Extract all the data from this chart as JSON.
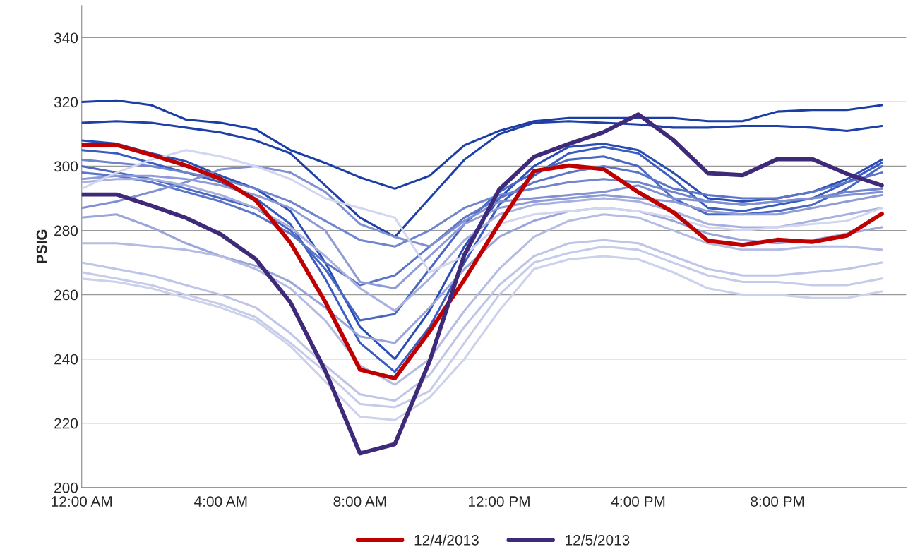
{
  "chart_data": {
    "type": "line",
    "ylabel": "PSIG",
    "x": [
      0,
      1,
      2,
      3,
      4,
      5,
      6,
      7,
      8,
      9,
      10,
      11,
      12,
      13,
      14,
      15,
      16,
      17,
      18,
      19,
      20,
      21,
      22,
      23
    ],
    "xlim": [
      0,
      23.7
    ],
    "xticks": [
      {
        "value": 0,
        "label": "12:00 AM"
      },
      {
        "value": 4,
        "label": "4:00 AM"
      },
      {
        "value": 8,
        "label": "8:00 AM"
      },
      {
        "value": 12,
        "label": "12:00 PM"
      },
      {
        "value": 16,
        "label": "4:00 PM"
      },
      {
        "value": 20,
        "label": "8:00 PM"
      }
    ],
    "ylim": [
      200,
      350
    ],
    "yticks": [
      200,
      220,
      240,
      260,
      280,
      300,
      320,
      340
    ],
    "grid": "y",
    "legend": "bottom",
    "marker": "none",
    "line_style": "solid",
    "series": [
      {
        "color": "#1a3ea6",
        "values": [
          320,
          320.5,
          319,
          314.5,
          313.5,
          311.5,
          305,
          301,
          296.5,
          293,
          297,
          306.5,
          311,
          314,
          315,
          315,
          315,
          315,
          314,
          314,
          317,
          317.5,
          317.5,
          319
        ]
      },
      {
        "color": "#1e40a8",
        "values": [
          313.5,
          314,
          313.5,
          312,
          310.5,
          308,
          304,
          294,
          284,
          278,
          290,
          302,
          310,
          313.5,
          314,
          313.5,
          313,
          312,
          312,
          312.5,
          312.5,
          312,
          311,
          312.5
        ]
      },
      {
        "color": "#2a4db5",
        "values": [
          308,
          307,
          304,
          301.5,
          297,
          293,
          286,
          270,
          250,
          240,
          255,
          275,
          290,
          300,
          306,
          307,
          305,
          298,
          290,
          289,
          290,
          292,
          296,
          302
        ]
      },
      {
        "color": "#3a5cc0",
        "values": [
          305,
          304,
          301,
          298,
          295,
          290,
          282,
          265,
          245,
          236,
          250,
          270,
          288,
          297,
          304,
          306,
          304,
          296,
          287,
          286,
          288,
          290,
          295,
          301
        ]
      },
      {
        "color": "#4a67c2",
        "values": [
          300,
          298,
          296,
          293,
          290,
          287,
          280,
          268,
          252,
          254,
          268,
          282,
          292,
          298,
          302,
          303,
          300,
          290,
          285,
          285,
          286,
          288,
          293,
          300
        ]
      },
      {
        "color": "#5b75c8",
        "values": [
          298,
          297,
          295,
          292,
          289,
          285,
          279,
          270,
          263,
          266,
          275,
          284,
          290,
          295,
          298,
          300,
          298,
          293,
          291,
          290,
          290,
          292,
          295,
          298
        ]
      },
      {
        "color": "#6f85cd",
        "values": [
          302,
          301,
          300,
          298,
          296,
          293,
          289,
          283,
          277,
          275,
          280,
          287,
          291,
          293,
          295,
          296,
          295,
          292,
          289,
          288,
          289,
          290,
          292,
          293
        ]
      },
      {
        "color": "#8090d2",
        "values": [
          287,
          289,
          292,
          295,
          299,
          300,
          298,
          292,
          282,
          278,
          275,
          283,
          289,
          290,
          291,
          292,
          294,
          290,
          289,
          288,
          289,
          290,
          291,
          292
        ]
      },
      {
        "color": "#8e9bd6",
        "values": [
          296,
          297,
          297,
          296,
          294,
          291,
          287,
          280,
          264,
          262,
          272,
          282,
          287,
          289,
          290,
          291,
          290,
          289,
          286,
          285,
          285,
          287,
          289,
          291
        ]
      },
      {
        "color": "#9aa5da",
        "values": [
          284,
          285,
          281,
          276,
          272,
          269,
          264,
          256,
          247,
          245,
          256,
          268,
          278,
          283,
          286,
          287,
          286,
          283,
          279,
          277,
          276,
          277,
          279,
          281
        ]
      },
      {
        "color": "#a7b0de",
        "values": [
          295,
          296,
          296,
          294,
          291,
          287,
          281,
          272,
          262,
          255,
          265,
          277,
          285,
          288,
          289,
          290,
          289,
          286,
          282,
          281,
          281,
          283,
          285,
          287
        ]
      },
      {
        "color": "#b4bce3",
        "values": [
          276,
          276,
          275,
          274,
          272,
          268,
          262,
          252,
          238,
          232,
          240,
          255,
          268,
          278,
          283,
          285,
          284,
          280,
          276,
          274,
          274,
          275,
          275,
          274
        ]
      },
      {
        "color": "#bec5e6",
        "values": [
          270,
          268,
          266,
          263,
          260,
          256,
          248,
          238,
          229,
          227,
          235,
          250,
          263,
          272,
          276,
          277,
          276,
          272,
          268,
          266,
          266,
          267,
          268,
          270
        ]
      },
      {
        "color": "#c6cbe9",
        "values": [
          267,
          265,
          263,
          260,
          257,
          253,
          245,
          236,
          226,
          225,
          230,
          245,
          260,
          270,
          273,
          275,
          274,
          270,
          266,
          264,
          264,
          263,
          263,
          265
        ]
      },
      {
        "color": "#ccd1ec",
        "values": [
          265,
          264,
          262,
          259,
          256,
          252,
          244,
          233,
          222,
          221,
          228,
          240,
          255,
          268,
          271,
          272,
          271,
          267,
          262,
          260,
          260,
          259,
          259,
          261
        ]
      },
      {
        "color": "#d2d6ee",
        "values": [
          293,
          298,
          302,
          305,
          303,
          300,
          296,
          290,
          287,
          284,
          267,
          272,
          282,
          285,
          286,
          287,
          286,
          284,
          281,
          280,
          281,
          282,
          283,
          287
        ]
      },
      {
        "name": "12/4/2013",
        "color": "#c00000",
        "values": [
          306.6,
          306.6,
          303.5,
          300.2,
          296,
          289.4,
          276.2,
          257.8,
          236.7,
          234,
          248.6,
          264.7,
          282.1,
          298.5,
          300.2,
          299.1,
          291.9,
          285.7,
          276.8,
          275.5,
          277.1,
          276.4,
          278.4,
          285.2
        ]
      },
      {
        "name": "12/5/2013",
        "color": "#3f2a7a",
        "values": [
          291.2,
          291.2,
          287.7,
          283.9,
          278.8,
          271.1,
          257.6,
          236.4,
          210.6,
          213.5,
          239.3,
          272.4,
          292.7,
          302.9,
          306.9,
          310.6,
          316.1,
          308.2,
          297.8,
          297.2,
          302.2,
          302.2,
          297.6,
          294
        ]
      }
    ]
  }
}
